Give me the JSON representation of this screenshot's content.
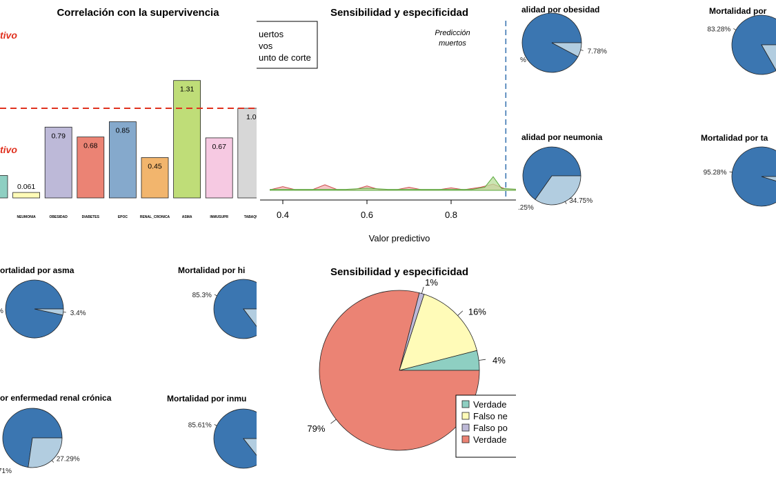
{
  "colors": {
    "dark_blue": "#3b76b1",
    "light_blue": "#b2cde0",
    "teal": "#8ecfc2",
    "yellow": "#fffbb8",
    "lavender": "#bdb9d8",
    "salmon": "#eb8374",
    "steel": "#85a9cc",
    "orange": "#f2b56d",
    "green": "#bfdd78",
    "pink": "#f6c9e2",
    "grey": "#d7d7d7",
    "red_line": "#e0301e"
  },
  "bar_panel": {
    "title": "Correlación con la supervivencia",
    "upper_label": "tivo",
    "lower_label": "tivo"
  },
  "density_panel": {
    "title": "Sensibilidad y especificidad",
    "legend": [
      "uertos",
      "vos",
      "unto de corte"
    ],
    "annotation": [
      "Predicción",
      "muertos"
    ],
    "xlabel": "Valor predictivo"
  },
  "pies": {
    "obesidad": {
      "title": "alidad por obesidad",
      "labels": [
        "7.78%",
        "%"
      ]
    },
    "neumonia": {
      "title": "alidad por neumonia",
      "labels": [
        "34.75%",
        ".25%"
      ]
    },
    "top_right_1": {
      "title": "Mortalidad por",
      "labels": [
        "83.28%"
      ]
    },
    "top_right_2": {
      "title": "Mortalidad por ta",
      "labels": [
        "95.28%"
      ]
    },
    "asma": {
      "title": "ortalidad por asma",
      "labels": [
        "3.4%",
        "%"
      ]
    },
    "hipertension": {
      "title": "Mortalidad por hi",
      "labels": [
        "85.3%"
      ]
    },
    "renal": {
      "title": "or enfermedad renal crónica",
      "labels": [
        "27.29%",
        "71%"
      ]
    },
    "inmuno": {
      "title": "Mortalidad por inmu",
      "labels": [
        "85.61%"
      ]
    }
  },
  "big_pie": {
    "title": "Sensibilidad y especificidad",
    "legend": [
      "Verdade",
      "Falso ne",
      "Falso po",
      "Verdade"
    ]
  },
  "chart_data": [
    {
      "type": "bar",
      "title": "Correlación con la supervivencia",
      "categories": [
        "",
        "NEUMONIA",
        "OBESIDAD",
        "DIABETES",
        "EPOC",
        "RENAL_CRONICA",
        "ASMA",
        "INMUSUPR",
        "TABAQU"
      ],
      "values": [
        0.25,
        0.061,
        0.79,
        0.68,
        0.85,
        0.45,
        1.31,
        0.67,
        1.0
      ],
      "value_labels": [
        "",
        "0.061",
        "0.79",
        "0.68",
        "0.85",
        "0.45",
        "1.31",
        "0.67",
        "1.0"
      ],
      "reference_line": 1.0,
      "ylim": [
        0,
        1.5
      ]
    },
    {
      "type": "area",
      "title": "Sensibilidad y especificidad",
      "xlabel": "Valor predictivo",
      "x_ticks": [
        "0.4",
        "0.6",
        "0.8"
      ],
      "xlim": [
        0.37,
        0.96
      ],
      "cutoff": 0.93,
      "series": [
        {
          "x": [
            0.37,
            0.4,
            0.43,
            0.47,
            0.5,
            0.53,
            0.57,
            0.6,
            0.63,
            0.67,
            0.7,
            0.73,
            0.77,
            0.8,
            0.83,
            0.87,
            0.9,
            0.93,
            0.96
          ],
          "y": [
            0.1,
            0.6,
            0.1,
            0.1,
            0.9,
            0.1,
            0.1,
            0.7,
            0.1,
            0.1,
            0.5,
            0.1,
            0.1,
            0.4,
            0.1,
            0.5,
            1.0,
            0.2,
            0.1
          ]
        },
        {
          "x": [
            0.37,
            0.55,
            0.6,
            0.65,
            0.85,
            0.88,
            0.9,
            0.92,
            0.96
          ],
          "y": [
            0.15,
            0.15,
            0.35,
            0.15,
            0.15,
            0.5,
            2.2,
            0.3,
            0.15
          ]
        }
      ]
    },
    {
      "type": "pie",
      "title": "Sensibilidad y especificidad",
      "labels": [
        "Verdade",
        "Falso ne",
        "Falso po",
        "Verdade"
      ],
      "values": [
        4,
        16,
        1,
        79
      ],
      "value_labels": [
        "4%",
        "16%",
        "1%",
        "79%"
      ]
    },
    {
      "type": "pie",
      "title": "alidad por obesidad",
      "values": [
        92.22,
        7.78
      ]
    },
    {
      "type": "pie",
      "title": "alidad por neumonia",
      "values": [
        65.25,
        34.75
      ]
    },
    {
      "type": "pie",
      "title": "Mortalidad por",
      "values": [
        83.28,
        16.72
      ]
    },
    {
      "type": "pie",
      "title": "Mortalidad por ta",
      "values": [
        95.28,
        4.72
      ]
    },
    {
      "type": "pie",
      "title": "ortalidad por asma",
      "values": [
        96.6,
        3.4
      ]
    },
    {
      "type": "pie",
      "title": "Mortalidad por hi",
      "values": [
        85.3,
        14.7
      ]
    },
    {
      "type": "pie",
      "title": "or enfermedad renal crónica",
      "values": [
        72.71,
        27.29
      ]
    },
    {
      "type": "pie",
      "title": "Mortalidad por inmu",
      "values": [
        85.61,
        14.39
      ]
    }
  ]
}
